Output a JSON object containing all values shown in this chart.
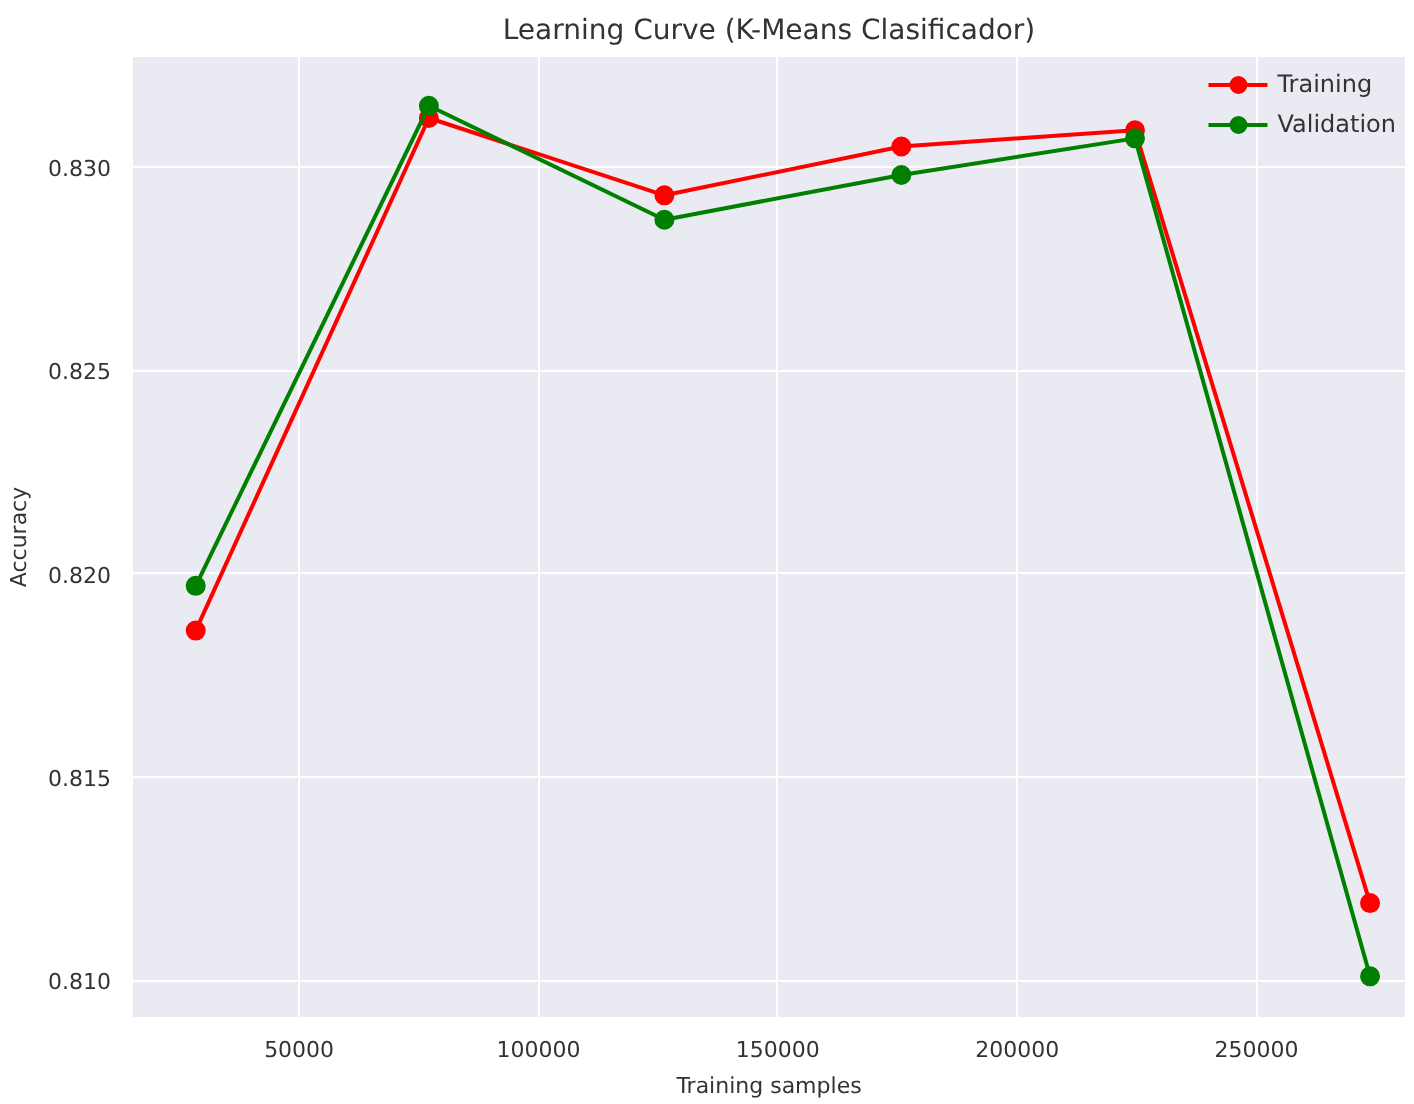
{
  "chart_data": {
    "type": "line",
    "title": "Learning Curve (K-Means Clasificador)",
    "xlabel": "Training samples",
    "ylabel": "Accuracy",
    "x": [
      28400,
      77100,
      126300,
      175800,
      224600,
      273700
    ],
    "series": [
      {
        "name": "Training",
        "color": "#ff0000",
        "values": [
          0.8186,
          0.8312,
          0.8293,
          0.8305,
          0.8309,
          0.8119
        ]
      },
      {
        "name": "Validation",
        "color": "#008000",
        "values": [
          0.8197,
          0.8315,
          0.8287,
          0.8298,
          0.8307,
          0.8101
        ]
      }
    ],
    "xlim": [
      15300,
      281000
    ],
    "ylim": [
      0.8091,
      0.8327
    ],
    "xticks": [
      50000,
      100000,
      150000,
      200000,
      250000
    ],
    "yticks": [
      {
        "value": 0.81,
        "label": "0.810"
      },
      {
        "value": 0.815,
        "label": "0.815"
      },
      {
        "value": 0.82,
        "label": "0.820"
      },
      {
        "value": 0.825,
        "label": "0.825"
      },
      {
        "value": 0.83,
        "label": "0.830"
      }
    ],
    "grid": true,
    "legend": "top right",
    "marker": "circle",
    "line_style": "solid"
  }
}
